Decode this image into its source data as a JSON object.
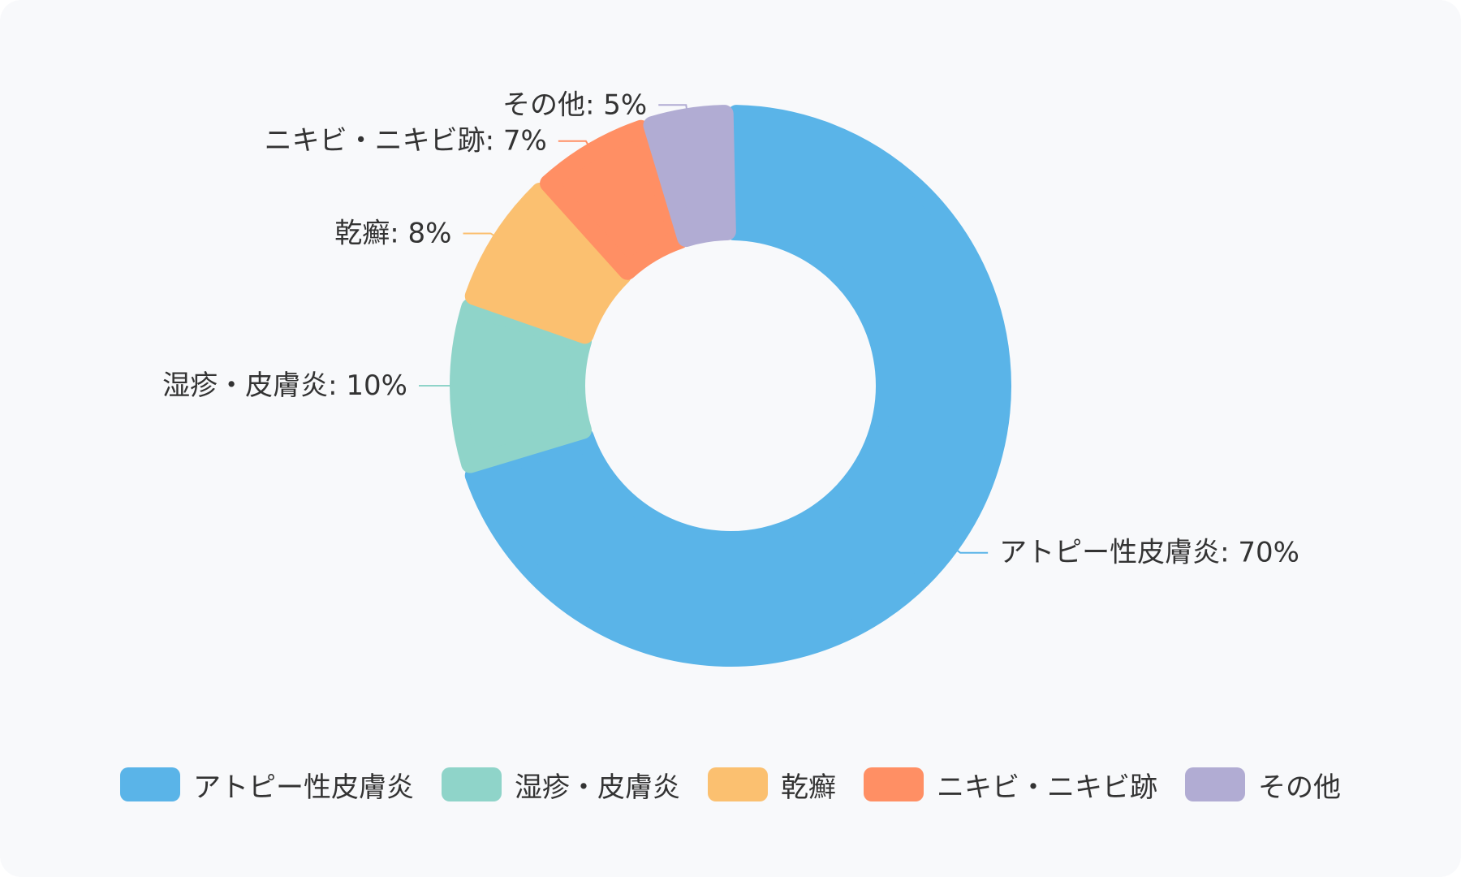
{
  "chart_data": {
    "type": "pie",
    "variant": "donut",
    "title": "",
    "categories": [
      "アトピー性皮膚炎",
      "湿疹・皮膚炎",
      "乾癬",
      "ニキビ・ニキビ跡",
      "その他"
    ],
    "values": [
      70,
      10,
      8,
      7,
      5
    ],
    "unit": "%",
    "labels": [
      "アトピー性皮膚炎: 70%",
      "湿疹・皮膚炎: 10%",
      "乾癬: 8%",
      "ニキビ・ニキビ跡: 7%",
      "その他: 5%"
    ],
    "colors": [
      "#5ab4e8",
      "#8fd4c9",
      "#fbc070",
      "#ff8f64",
      "#b1acd3"
    ],
    "legend_position": "bottom",
    "start_angle": "top",
    "direction": "clockwise"
  }
}
